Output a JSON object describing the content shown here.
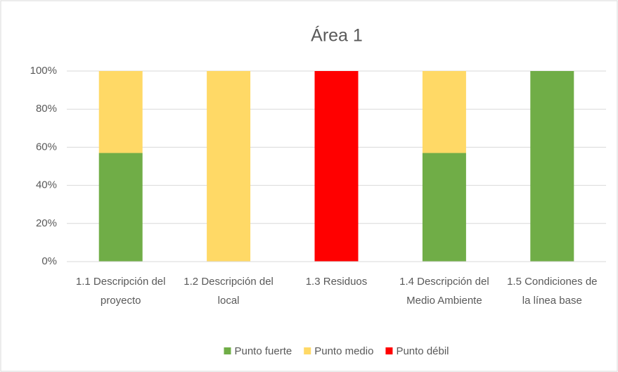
{
  "chart_data": {
    "type": "stacked_bar",
    "title": "Área 1",
    "categories": [
      "1.1 Descripción del proyecto",
      "1.2 Descripción del local",
      "1.3 Residuos",
      "1.4 Descripción del Medio Ambiente",
      "1.5 Condiciones de la línea base"
    ],
    "series": [
      {
        "name": "Punto fuerte",
        "color": "#70ad47",
        "values": [
          57,
          0,
          0,
          57,
          100
        ]
      },
      {
        "name": "Punto medio",
        "color": "#ffd966",
        "values": [
          43,
          100,
          0,
          43,
          0
        ]
      },
      {
        "name": "Punto débil",
        "color": "#ff0000",
        "values": [
          0,
          0,
          100,
          0,
          0
        ]
      }
    ],
    "ylim": [
      0,
      100
    ],
    "yticks": [
      {
        "value": 0,
        "label": "0%"
      },
      {
        "value": 20,
        "label": "20%"
      },
      {
        "value": 40,
        "label": "40%"
      },
      {
        "value": 60,
        "label": "60%"
      },
      {
        "value": 80,
        "label": "80%"
      },
      {
        "value": 100,
        "label": "100%"
      }
    ],
    "grid": true,
    "legend": "bottom"
  }
}
